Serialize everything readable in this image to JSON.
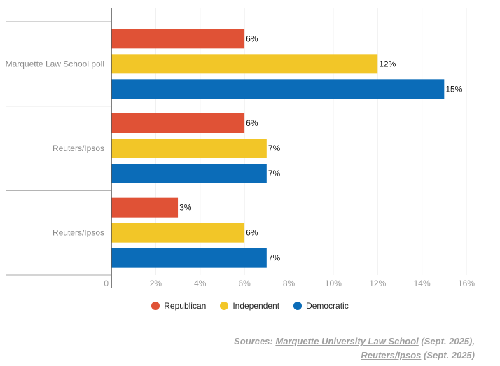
{
  "chart_data": {
    "type": "bar",
    "orientation": "horizontal",
    "categories": [
      "Marquette Law School poll",
      "Reuters/Ipsos",
      "Reuters/Ipsos"
    ],
    "series": [
      {
        "name": "Republican",
        "color": "#e05236",
        "values": [
          6,
          6,
          3
        ]
      },
      {
        "name": "Independent",
        "color": "#f2c628",
        "values": [
          12,
          7,
          6
        ]
      },
      {
        "name": "Democratic",
        "color": "#0b6cb8",
        "values": [
          15,
          7,
          7
        ]
      }
    ],
    "value_labels": [
      [
        "6%",
        "6%",
        "3%"
      ],
      [
        "12%",
        "7%",
        "6%"
      ],
      [
        "15%",
        "7%",
        "7%"
      ]
    ],
    "xlim": [
      0,
      16
    ],
    "x_ticks": [
      0,
      2,
      4,
      6,
      8,
      10,
      12,
      14,
      16
    ],
    "x_tick_labels": [
      "0",
      "2%",
      "4%",
      "6%",
      "8%",
      "10%",
      "12%",
      "14%",
      "16%"
    ],
    "grid": true,
    "legend_position": "bottom"
  },
  "sources": {
    "prefix": "Sources: ",
    "link1": "Marquette University Law School",
    "text1": " (Sept. 2025),",
    "link2": "Reuters/Ipsos",
    "text2": " (Sept. 2025)"
  }
}
